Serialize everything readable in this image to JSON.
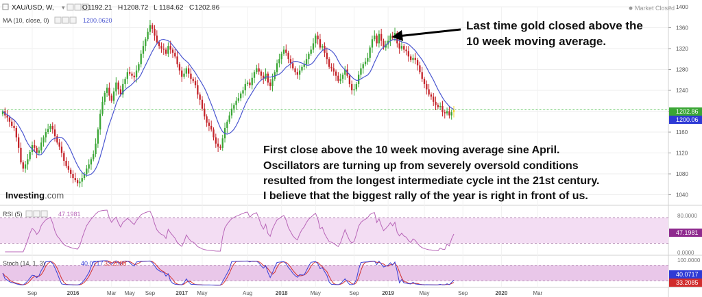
{
  "header": {
    "symbol": "XAU/USD, W,",
    "ohlc": [
      {
        "k": "O",
        "v": "1192.21"
      },
      {
        "k": "H",
        "v": "1208.72"
      },
      {
        "k": "L",
        "v": "1184.62"
      },
      {
        "k": "C",
        "v": "1202.86"
      }
    ],
    "ma_label": "MA (10, close, 0)",
    "ma_value": "1200.0620",
    "market_status": "Market Closed"
  },
  "annotations": {
    "arrow_note_line1": "Last time gold closed above the",
    "arrow_note_line2": "10 week moving average.",
    "commentary": [
      "First close above the 10 week moving average sine April.",
      "Oscillators are turning up from severely oversold conditions",
      "resulted from the longest intermediate cycle int the 21st century.",
      "I believe that the biggest rally of the year is right in front of us."
    ]
  },
  "brand": {
    "name": "Investing",
    "suffix": ".com"
  },
  "colors": {
    "up": "#3aa635",
    "down": "#c4242a",
    "ma": "#4a56d0",
    "rsi": "#b866b8",
    "band": "#f3ddf3",
    "stoch_k": "#3a3fd6",
    "stoch_d": "#d23232",
    "price_line": "#55c455",
    "last_candle": "#f1d42a"
  },
  "chart_data": [
    {
      "type": "candlestick",
      "title": "XAU/USD, W,",
      "ylim": [
        1025,
        1400
      ],
      "y_ticks": [
        1040,
        1080,
        1120,
        1160,
        1200,
        1240,
        1280,
        1320,
        1360,
        1400
      ],
      "x_ticks": [
        "Sep",
        "2016",
        "Mar",
        "May",
        "Sep",
        "2017",
        "May",
        "Aug",
        "2018",
        "May",
        "Sep",
        "2019",
        "May",
        "Sep",
        "2020",
        "Mar"
      ],
      "closes": [
        1200,
        1192,
        1188,
        1180,
        1172,
        1168,
        1150,
        1130,
        1102,
        1090,
        1098,
        1108,
        1122,
        1135,
        1130,
        1120,
        1125,
        1140,
        1150,
        1160,
        1166,
        1172,
        1165,
        1152,
        1140,
        1132,
        1120,
        1105,
        1095,
        1088,
        1080,
        1072,
        1068,
        1062,
        1065,
        1072,
        1080,
        1090,
        1098,
        1108,
        1118,
        1138,
        1165,
        1195,
        1218,
        1235,
        1245,
        1230,
        1220,
        1238,
        1255,
        1242,
        1232,
        1252,
        1262,
        1275,
        1272,
        1268,
        1265,
        1278,
        1290,
        1310,
        1325,
        1338,
        1352,
        1365,
        1358,
        1345,
        1332,
        1325,
        1320,
        1318,
        1310,
        1325,
        1318,
        1312,
        1305,
        1290,
        1278,
        1266,
        1272,
        1282,
        1272,
        1262,
        1258,
        1250,
        1232,
        1222,
        1205,
        1190,
        1178,
        1172,
        1165,
        1150,
        1138,
        1132,
        1130,
        1148,
        1168,
        1180,
        1192,
        1205,
        1212,
        1220,
        1225,
        1234,
        1240,
        1252,
        1255,
        1250,
        1264,
        1275,
        1282,
        1276,
        1268,
        1262,
        1272,
        1255,
        1248,
        1262,
        1275,
        1292,
        1300,
        1310,
        1318,
        1312,
        1300,
        1292,
        1282,
        1275,
        1270,
        1278,
        1285,
        1290,
        1300,
        1310,
        1318,
        1330,
        1345,
        1338,
        1322,
        1325,
        1312,
        1300,
        1285,
        1282,
        1276,
        1268,
        1258,
        1262,
        1270,
        1280,
        1268,
        1252,
        1240,
        1242,
        1252,
        1270,
        1282,
        1290,
        1295,
        1302,
        1322,
        1338,
        1345,
        1330,
        1348,
        1335,
        1322,
        1328,
        1335,
        1345,
        1340,
        1350,
        1330,
        1320,
        1325,
        1318,
        1315,
        1305,
        1298,
        1302,
        1298,
        1288,
        1275,
        1262,
        1252,
        1242,
        1232,
        1228,
        1218,
        1212,
        1208,
        1210,
        1198,
        1196,
        1200,
        1192,
        1198,
        1202.86
      ],
      "series": [
        {
          "name": "MA (10, close, 0)",
          "last": 1200.06
        },
        {
          "name": "Close",
          "last": 1202.86
        }
      ]
    },
    {
      "type": "line",
      "title": "RSI (5)",
      "value": "47.1981",
      "ylim": [
        0,
        100
      ],
      "y_ticks": [
        "80.0000",
        "0.0000"
      ],
      "band": [
        20,
        80
      ]
    },
    {
      "type": "line",
      "title": "Stoch (14, 1, 3)",
      "k_value": "40.0717",
      "d_value": "33.2085",
      "ylim": [
        0,
        100
      ],
      "y_ticks": [
        "100.0000"
      ],
      "band": [
        20,
        80
      ]
    }
  ]
}
